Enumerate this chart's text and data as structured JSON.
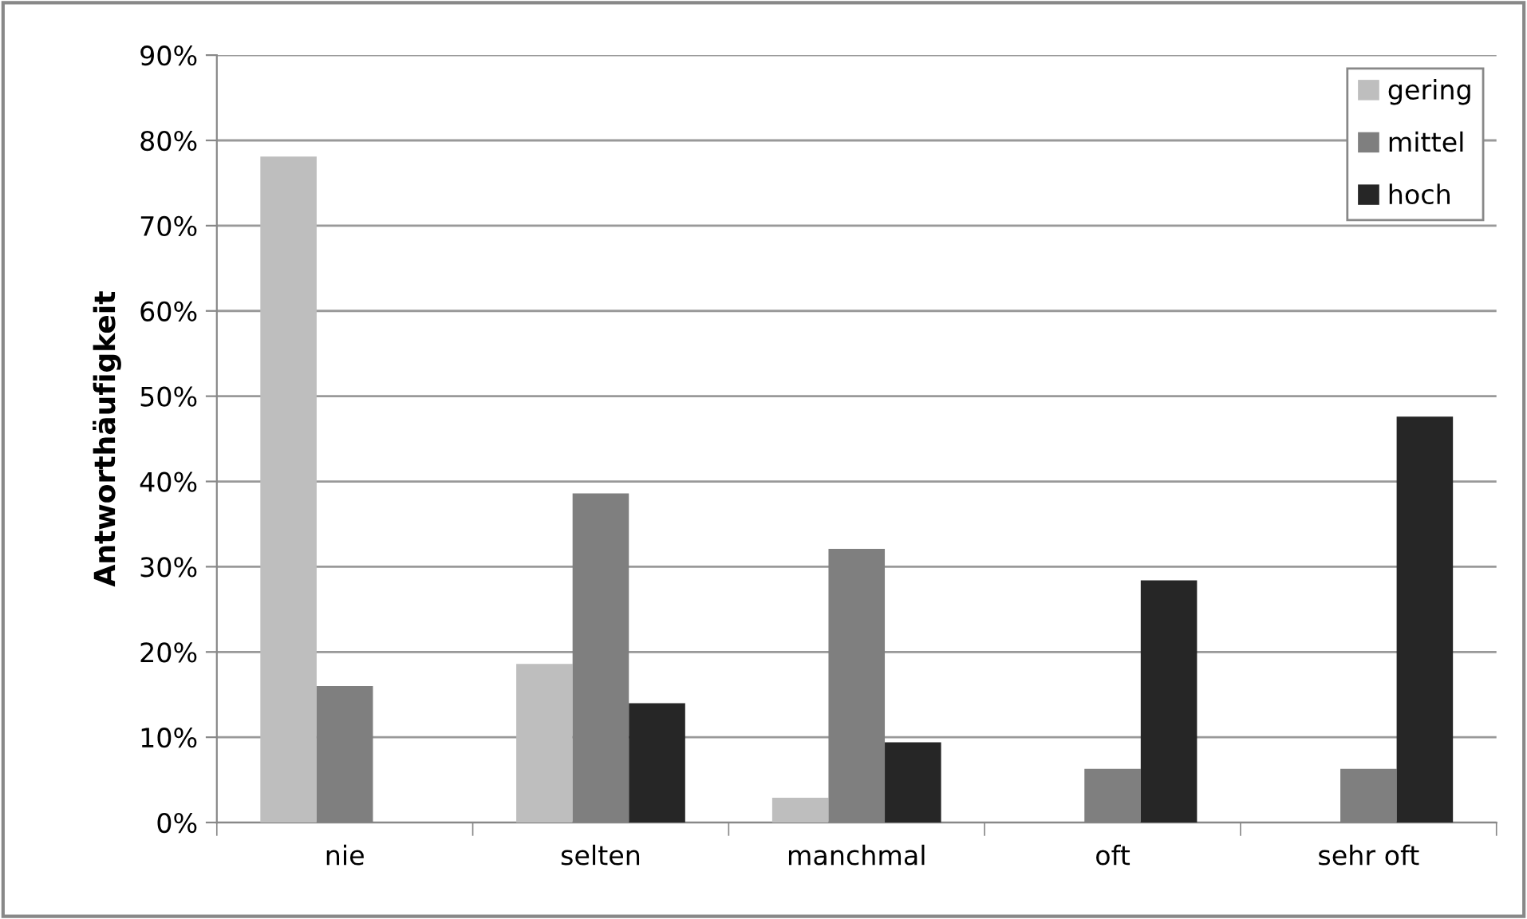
{
  "chart_data": {
    "type": "bar",
    "ylabel": "Antworthäufigkeit",
    "categories": [
      "nie",
      "selten",
      "manchmal",
      "oft",
      "sehr oft"
    ],
    "series": [
      {
        "name": "gering",
        "color": "#bebebe",
        "values": [
          78.1,
          18.6,
          2.9,
          0,
          0
        ]
      },
      {
        "name": "mittel",
        "color": "#7f7f7f",
        "values": [
          16.0,
          38.6,
          32.1,
          6.3,
          6.3
        ]
      },
      {
        "name": "hoch",
        "color": "#262626",
        "values": [
          0,
          14.0,
          9.4,
          28.4,
          47.6
        ]
      }
    ],
    "ylim": [
      0,
      90
    ],
    "yticks": [
      {
        "value": 0,
        "label": "0%"
      },
      {
        "value": 10,
        "label": "10%"
      },
      {
        "value": 20,
        "label": "20%"
      },
      {
        "value": 30,
        "label": "30%"
      },
      {
        "value": 40,
        "label": "40%"
      },
      {
        "value": 50,
        "label": "50%"
      },
      {
        "value": 60,
        "label": "60%"
      },
      {
        "value": 70,
        "label": "70%"
      },
      {
        "value": 80,
        "label": "80%"
      },
      {
        "value": 90,
        "label": "90%"
      }
    ],
    "grid": "y",
    "legend": "top right"
  }
}
